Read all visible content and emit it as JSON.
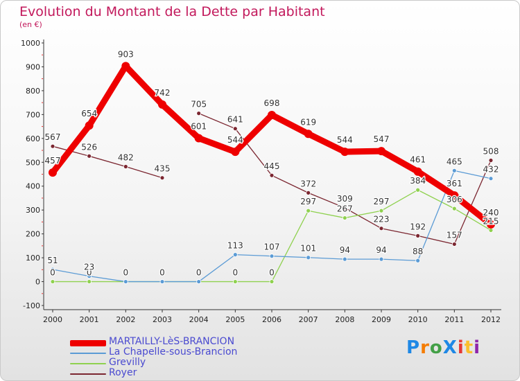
{
  "title": "Evolution du Montant de la Dette par Habitant",
  "subtitle": "(en €)",
  "logo": {
    "text": "ProXiti",
    "colors": [
      "#1e88e5",
      "#f57c00",
      "#43a047",
      "#1e88e5",
      "#e53935",
      "#fbc02d",
      "#8e24aa"
    ]
  },
  "chart_data": {
    "type": "line",
    "x": [
      "2000",
      "2001",
      "2002",
      "2003",
      "2004",
      "2005",
      "2006",
      "2007",
      "2008",
      "2009",
      "2010",
      "2011",
      "2012"
    ],
    "ylim": [
      -100,
      1000
    ],
    "yticks": [
      -100,
      0,
      100,
      200,
      300,
      400,
      500,
      600,
      700,
      800,
      900,
      1000
    ],
    "grid": false,
    "legend_position": "bottom-left",
    "series": [
      {
        "name": "MARTAILLY-LèS-BRANCION",
        "color": "#ee0000",
        "thick": true,
        "values": [
          457,
          654,
          903,
          742,
          601,
          544,
          698,
          619,
          544,
          547,
          461,
          361,
          240
        ],
        "labels": [
          "457",
          "654",
          "903",
          "742",
          "601",
          "544",
          "698",
          "619",
          "544",
          "547",
          "461",
          "361",
          "240"
        ]
      },
      {
        "name": "La Chapelle-sous-Brancion",
        "color": "#5b9bd5",
        "thick": false,
        "values": [
          51,
          23,
          0,
          0,
          0,
          113,
          107,
          101,
          94,
          94,
          88,
          465,
          432
        ],
        "labels": [
          "51",
          "23",
          "0",
          "0",
          "0",
          "113",
          "107",
          "101",
          "94",
          "94",
          "88",
          "465",
          "432"
        ]
      },
      {
        "name": "Grevilly",
        "color": "#8fd14f",
        "thick": false,
        "values": [
          0,
          0,
          0,
          0,
          0,
          0,
          0,
          297,
          267,
          297,
          384,
          306,
          215
        ],
        "labels": [
          "0",
          "0",
          "",
          "",
          "",
          "0",
          "0",
          "297",
          "267",
          "297",
          "384",
          "306",
          "215"
        ]
      },
      {
        "name": "Royer",
        "color": "#7b2630",
        "thick": false,
        "values": [
          567,
          526,
          482,
          435,
          null,
          null,
          445,
          372,
          309,
          223,
          192,
          157,
          508
        ],
        "values_segments": [
          [
            567,
            526,
            482,
            435,
            null,
            null,
            null,
            null,
            null,
            null,
            null,
            null,
            null
          ],
          [
            null,
            null,
            null,
            null,
            705,
            641,
            445,
            372,
            309,
            223,
            192,
            157,
            508
          ]
        ],
        "labels": [
          "567",
          "526",
          "482",
          "435",
          "705",
          "641",
          "445",
          "372",
          "309",
          "223",
          "192",
          "157",
          "508"
        ],
        "label_values": [
          567,
          526,
          482,
          435,
          705,
          641,
          445,
          372,
          309,
          223,
          192,
          157,
          508
        ]
      }
    ]
  }
}
